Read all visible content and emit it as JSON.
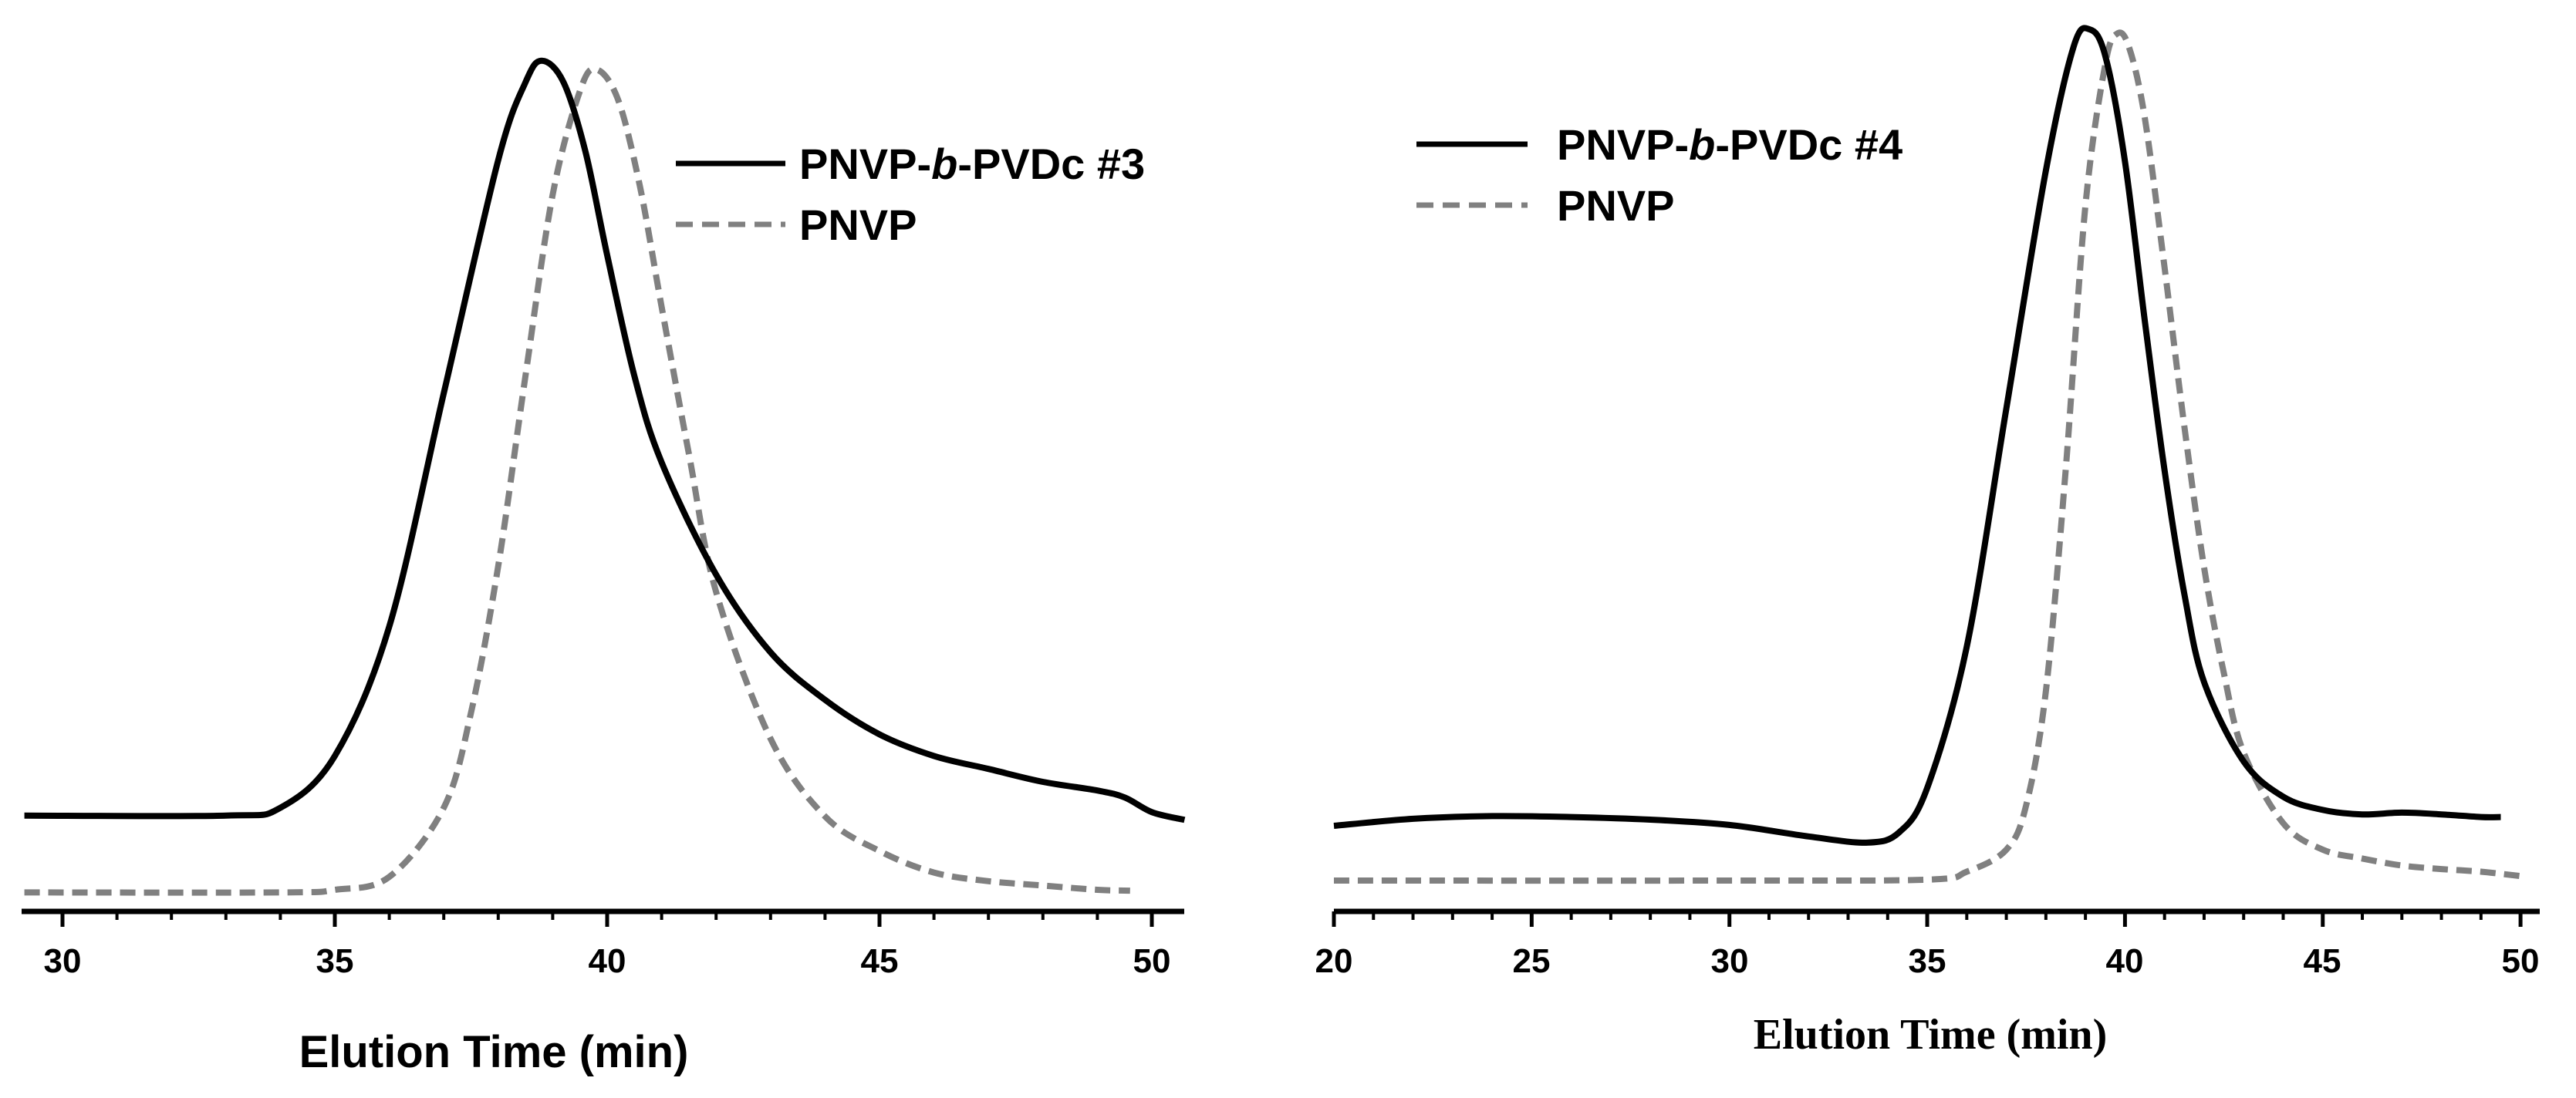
{
  "colors": {
    "sample": "#000000",
    "reference": "#808080"
  },
  "chart_data": [
    {
      "type": "line",
      "xlabel": "Elution Time (min)",
      "xlim": [
        29.3,
        50.7
      ],
      "ylim": [
        0,
        1
      ],
      "xticks": [
        "30",
        "35",
        "40",
        "45",
        "50"
      ],
      "legend": "top-right",
      "grid": false,
      "series": [
        {
          "name": "PNVP-b-PVDc #3",
          "name_parts": [
            "PNVP-",
            "b",
            "-PVDc #3"
          ],
          "line_style": "solid",
          "points": [
            [
              29.3,
              0.111
            ],
            [
              33,
              0.111
            ],
            [
              34,
              0.12
            ],
            [
              35,
              0.18
            ],
            [
              36,
              0.33
            ],
            [
              37,
              0.6
            ],
            [
              38,
              0.87
            ],
            [
              38.5,
              0.96
            ],
            [
              38.8,
              0.985
            ],
            [
              39.2,
              0.96
            ],
            [
              39.6,
              0.88
            ],
            [
              40,
              0.76
            ],
            [
              40.5,
              0.62
            ],
            [
              41,
              0.52
            ],
            [
              42,
              0.39
            ],
            [
              43,
              0.3
            ],
            [
              44,
              0.245
            ],
            [
              45,
              0.205
            ],
            [
              46,
              0.18
            ],
            [
              47,
              0.165
            ],
            [
              48,
              0.15
            ],
            [
              49,
              0.14
            ],
            [
              49.5,
              0.132
            ],
            [
              50,
              0.115
            ],
            [
              50.6,
              0.106
            ]
          ]
        },
        {
          "name": "PNVP",
          "name_parts": [
            "PNVP"
          ],
          "line_style": "dashed",
          "points": [
            [
              29.3,
              0.022
            ],
            [
              34,
              0.022
            ],
            [
              35,
              0.025
            ],
            [
              36,
              0.04
            ],
            [
              37,
              0.12
            ],
            [
              37.5,
              0.23
            ],
            [
              38,
              0.4
            ],
            [
              38.5,
              0.62
            ],
            [
              39,
              0.83
            ],
            [
              39.5,
              0.95
            ],
            [
              39.8,
              0.975
            ],
            [
              40.2,
              0.94
            ],
            [
              40.6,
              0.84
            ],
            [
              41,
              0.7
            ],
            [
              41.5,
              0.53
            ],
            [
              42,
              0.37
            ],
            [
              43,
              0.2
            ],
            [
              44,
              0.11
            ],
            [
              45,
              0.07
            ],
            [
              46,
              0.045
            ],
            [
              47,
              0.035
            ],
            [
              48,
              0.03
            ],
            [
              49,
              0.025
            ],
            [
              49.6,
              0.024
            ]
          ]
        }
      ]
    },
    {
      "type": "line",
      "xlabel": "Elution Time (min)",
      "xlim": [
        20,
        50
      ],
      "ylim": [
        0,
        1
      ],
      "xticks": [
        "20",
        "25",
        "30",
        "35",
        "40",
        "45",
        "50"
      ],
      "legend": "top-left",
      "grid": false,
      "series": [
        {
          "name": "PNVP-b-PVDc #4",
          "name_parts": [
            "PNVP-",
            "b",
            "-PVDc #4"
          ],
          "line_style": "solid",
          "points": [
            [
              20,
              0.097
            ],
            [
              22,
              0.105
            ],
            [
              24,
              0.108
            ],
            [
              26,
              0.107
            ],
            [
              28,
              0.104
            ],
            [
              30,
              0.098
            ],
            [
              32,
              0.085
            ],
            [
              33.5,
              0.078
            ],
            [
              34.3,
              0.09
            ],
            [
              35,
              0.14
            ],
            [
              36,
              0.3
            ],
            [
              37,
              0.57
            ],
            [
              38,
              0.84
            ],
            [
              38.7,
              0.98
            ],
            [
              39.1,
              1.0
            ],
            [
              39.5,
              0.97
            ],
            [
              40,
              0.85
            ],
            [
              40.5,
              0.67
            ],
            [
              41,
              0.5
            ],
            [
              41.5,
              0.36
            ],
            [
              42,
              0.26
            ],
            [
              43,
              0.17
            ],
            [
              44,
              0.13
            ],
            [
              45,
              0.115
            ],
            [
              46,
              0.11
            ],
            [
              47,
              0.112
            ],
            [
              48,
              0.11
            ],
            [
              49,
              0.107
            ],
            [
              49.5,
              0.107
            ]
          ]
        },
        {
          "name": "PNVP",
          "name_parts": [
            "PNVP"
          ],
          "line_style": "dashed",
          "points": [
            [
              20,
              0.035
            ],
            [
              30,
              0.035
            ],
            [
              35,
              0.036
            ],
            [
              36,
              0.045
            ],
            [
              37,
              0.07
            ],
            [
              37.5,
              0.12
            ],
            [
              38,
              0.25
            ],
            [
              38.5,
              0.5
            ],
            [
              39,
              0.8
            ],
            [
              39.5,
              0.96
            ],
            [
              39.8,
              0.995
            ],
            [
              40.1,
              0.98
            ],
            [
              40.5,
              0.9
            ],
            [
              41,
              0.73
            ],
            [
              41.5,
              0.55
            ],
            [
              42,
              0.39
            ],
            [
              42.5,
              0.27
            ],
            [
              43,
              0.18
            ],
            [
              44,
              0.1
            ],
            [
              45,
              0.07
            ],
            [
              46,
              0.06
            ],
            [
              47,
              0.052
            ],
            [
              48,
              0.048
            ],
            [
              49,
              0.045
            ],
            [
              50,
              0.04
            ]
          ]
        }
      ]
    }
  ]
}
